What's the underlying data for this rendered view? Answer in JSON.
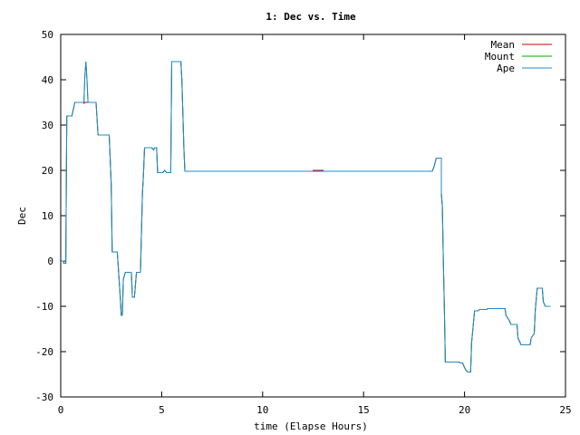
{
  "chart_data": {
    "type": "line",
    "title": "1: Dec vs. Time",
    "xlabel": "time (Elapse Hours)",
    "ylabel": "Dec",
    "xlim": [
      0,
      25
    ],
    "ylim": [
      -30,
      50
    ],
    "x_ticks": [
      0,
      5,
      10,
      15,
      20,
      25
    ],
    "y_ticks": [
      -30,
      -20,
      -10,
      0,
      10,
      20,
      30,
      40,
      50
    ],
    "grid": false,
    "legend_position": "top-right",
    "series": [
      {
        "name": "Mean",
        "color": "#cc0000",
        "points": [
          [
            0,
            0
          ],
          [
            0.15,
            0
          ],
          [
            0.15,
            -0.5
          ],
          [
            0.25,
            -0.5
          ],
          [
            0.3,
            32
          ],
          [
            0.55,
            32
          ],
          [
            0.7,
            35
          ],
          [
            1.15,
            35
          ],
          [
            1.15,
            34.8
          ],
          [
            1.2,
            35
          ],
          [
            1.25,
            35
          ],
          [
            1.35,
            35
          ],
          [
            1.75,
            35
          ],
          [
            1.85,
            27.8
          ],
          [
            2.4,
            27.8
          ],
          [
            2.5,
            17
          ],
          [
            2.55,
            2
          ],
          [
            2.8,
            2
          ],
          [
            2.95,
            -8
          ],
          [
            3,
            -12
          ],
          [
            3.05,
            -12
          ],
          [
            3.1,
            -4
          ],
          [
            3.2,
            -2.5
          ],
          [
            3.5,
            -2.5
          ],
          [
            3.55,
            -8
          ],
          [
            3.65,
            -8
          ],
          [
            3.75,
            -2.5
          ],
          [
            3.95,
            -2.5
          ],
          [
            4.05,
            15
          ],
          [
            4.1,
            19
          ],
          [
            4.15,
            25
          ],
          [
            4.5,
            25
          ],
          [
            4.6,
            24.5
          ],
          [
            4.65,
            25
          ],
          [
            4.75,
            25
          ],
          [
            4.8,
            19.5
          ],
          [
            5.05,
            19.5
          ],
          [
            5.15,
            20
          ],
          [
            5.25,
            19.5
          ],
          [
            5.45,
            19.5
          ],
          [
            5.5,
            44
          ],
          [
            5.95,
            44
          ],
          [
            6,
            40
          ],
          [
            6.1,
            25
          ],
          [
            6.15,
            19.8
          ],
          [
            12.5,
            19.8
          ],
          [
            12.5,
            20
          ],
          [
            13,
            20
          ],
          [
            13,
            19.8
          ],
          [
            18.4,
            19.8
          ],
          [
            18.5,
            21
          ],
          [
            18.6,
            22.7
          ],
          [
            18.85,
            22.7
          ],
          [
            18.85,
            15
          ],
          [
            18.9,
            12
          ],
          [
            18.95,
            0
          ],
          [
            19,
            -10
          ],
          [
            19.05,
            -22.3
          ],
          [
            19.7,
            -22.3
          ],
          [
            19.8,
            -22.5
          ],
          [
            19.9,
            -22.5
          ],
          [
            20.05,
            -24
          ],
          [
            20.15,
            -24.5
          ],
          [
            20.3,
            -24.5
          ],
          [
            20.35,
            -18
          ],
          [
            20.5,
            -11
          ],
          [
            20.65,
            -11
          ],
          [
            20.75,
            -10.7
          ],
          [
            21.1,
            -10.7
          ],
          [
            21.15,
            -10.5
          ],
          [
            22,
            -10.5
          ],
          [
            22.05,
            -12
          ],
          [
            22.2,
            -13
          ],
          [
            22.3,
            -14
          ],
          [
            22.6,
            -14
          ],
          [
            22.65,
            -17
          ],
          [
            22.8,
            -18.5
          ],
          [
            23.25,
            -18.5
          ],
          [
            23.3,
            -17
          ],
          [
            23.45,
            -16
          ],
          [
            23.5,
            -11
          ],
          [
            23.6,
            -6
          ],
          [
            23.85,
            -6
          ],
          [
            23.9,
            -9
          ],
          [
            24,
            -10
          ],
          [
            24.25,
            -10
          ]
        ]
      },
      {
        "name": "Mount",
        "color": "#00aa00",
        "points": [
          [
            0,
            0
          ],
          [
            0.15,
            0
          ],
          [
            0.15,
            -0.5
          ],
          [
            0.25,
            -0.5
          ],
          [
            0.3,
            32
          ],
          [
            0.55,
            32
          ],
          [
            0.7,
            35
          ],
          [
            1.15,
            35
          ],
          [
            1.2,
            41
          ],
          [
            1.25,
            44
          ],
          [
            1.3,
            40
          ],
          [
            1.35,
            35
          ],
          [
            1.75,
            35
          ],
          [
            1.85,
            27.8
          ],
          [
            2.4,
            27.8
          ],
          [
            2.5,
            17
          ],
          [
            2.55,
            2
          ],
          [
            2.8,
            2
          ],
          [
            2.95,
            -8
          ],
          [
            3,
            -12
          ],
          [
            3.05,
            -12
          ],
          [
            3.1,
            -4
          ],
          [
            3.2,
            -2.5
          ],
          [
            3.5,
            -2.5
          ],
          [
            3.55,
            -8
          ],
          [
            3.65,
            -8
          ],
          [
            3.75,
            -2.5
          ],
          [
            3.95,
            -2.5
          ],
          [
            4.05,
            15
          ],
          [
            4.1,
            19
          ],
          [
            4.15,
            25
          ],
          [
            4.5,
            25
          ],
          [
            4.6,
            24.5
          ],
          [
            4.65,
            25
          ],
          [
            4.75,
            25
          ],
          [
            4.8,
            19.5
          ],
          [
            5.05,
            19.5
          ],
          [
            5.15,
            20
          ],
          [
            5.25,
            19.5
          ],
          [
            5.45,
            19.5
          ],
          [
            5.5,
            44
          ],
          [
            5.95,
            44
          ],
          [
            6,
            40
          ],
          [
            6.1,
            25
          ],
          [
            6.15,
            19.8
          ],
          [
            18.4,
            19.8
          ],
          [
            18.5,
            21
          ],
          [
            18.6,
            22.7
          ],
          [
            18.85,
            22.7
          ],
          [
            18.85,
            15
          ],
          [
            18.9,
            12
          ],
          [
            18.95,
            0
          ],
          [
            19,
            -10
          ],
          [
            19.05,
            -22.3
          ],
          [
            19.7,
            -22.3
          ],
          [
            19.8,
            -22.5
          ],
          [
            19.9,
            -22.5
          ],
          [
            20.05,
            -24
          ],
          [
            20.15,
            -24.5
          ],
          [
            20.3,
            -24.5
          ],
          [
            20.35,
            -18
          ],
          [
            20.5,
            -11
          ],
          [
            20.65,
            -11
          ],
          [
            20.75,
            -10.7
          ],
          [
            21.1,
            -10.7
          ],
          [
            21.15,
            -10.5
          ],
          [
            22,
            -10.5
          ],
          [
            22.05,
            -12
          ],
          [
            22.2,
            -13
          ],
          [
            22.3,
            -14
          ],
          [
            22.6,
            -14
          ],
          [
            22.65,
            -17
          ],
          [
            22.8,
            -18.5
          ],
          [
            23.25,
            -18.5
          ],
          [
            23.3,
            -17
          ],
          [
            23.45,
            -16
          ],
          [
            23.5,
            -11
          ],
          [
            23.6,
            -6
          ],
          [
            23.85,
            -6
          ],
          [
            23.9,
            -9
          ],
          [
            24,
            -10
          ],
          [
            24.25,
            -10
          ]
        ]
      },
      {
        "name": "Ape",
        "color": "#2288cc",
        "points": [
          [
            0,
            0
          ],
          [
            0.15,
            0
          ],
          [
            0.15,
            -0.5
          ],
          [
            0.25,
            -0.5
          ],
          [
            0.3,
            32
          ],
          [
            0.55,
            32
          ],
          [
            0.7,
            35
          ],
          [
            1.15,
            35
          ],
          [
            1.2,
            41
          ],
          [
            1.25,
            44
          ],
          [
            1.3,
            40
          ],
          [
            1.35,
            35
          ],
          [
            1.75,
            35
          ],
          [
            1.85,
            27.8
          ],
          [
            2.4,
            27.8
          ],
          [
            2.5,
            17
          ],
          [
            2.55,
            2
          ],
          [
            2.8,
            2
          ],
          [
            2.95,
            -8
          ],
          [
            3,
            -12
          ],
          [
            3.05,
            -12
          ],
          [
            3.1,
            -4
          ],
          [
            3.2,
            -2.5
          ],
          [
            3.5,
            -2.5
          ],
          [
            3.55,
            -8
          ],
          [
            3.65,
            -8
          ],
          [
            3.75,
            -2.5
          ],
          [
            3.95,
            -2.5
          ],
          [
            4.05,
            15
          ],
          [
            4.1,
            19
          ],
          [
            4.15,
            25
          ],
          [
            4.5,
            25
          ],
          [
            4.6,
            24.5
          ],
          [
            4.65,
            25
          ],
          [
            4.75,
            25
          ],
          [
            4.8,
            19.5
          ],
          [
            5.05,
            19.5
          ],
          [
            5.15,
            20
          ],
          [
            5.25,
            19.5
          ],
          [
            5.45,
            19.5
          ],
          [
            5.5,
            44
          ],
          [
            5.95,
            44
          ],
          [
            6,
            40
          ],
          [
            6.1,
            25
          ],
          [
            6.15,
            19.8
          ],
          [
            18.4,
            19.8
          ],
          [
            18.5,
            21
          ],
          [
            18.6,
            22.7
          ],
          [
            18.85,
            22.7
          ],
          [
            18.85,
            15
          ],
          [
            18.9,
            12
          ],
          [
            18.95,
            0
          ],
          [
            19,
            -10
          ],
          [
            19.05,
            -22.3
          ],
          [
            19.7,
            -22.3
          ],
          [
            19.8,
            -22.5
          ],
          [
            19.9,
            -22.5
          ],
          [
            20.05,
            -24
          ],
          [
            20.15,
            -24.5
          ],
          [
            20.3,
            -24.5
          ],
          [
            20.35,
            -18
          ],
          [
            20.5,
            -11
          ],
          [
            20.65,
            -11
          ],
          [
            20.75,
            -10.7
          ],
          [
            21.1,
            -10.7
          ],
          [
            21.15,
            -10.5
          ],
          [
            22,
            -10.5
          ],
          [
            22.05,
            -12
          ],
          [
            22.2,
            -13
          ],
          [
            22.3,
            -14
          ],
          [
            22.6,
            -14
          ],
          [
            22.65,
            -17
          ],
          [
            22.8,
            -18.5
          ],
          [
            23.25,
            -18.5
          ],
          [
            23.3,
            -17
          ],
          [
            23.45,
            -16
          ],
          [
            23.5,
            -11
          ],
          [
            23.6,
            -6
          ],
          [
            23.85,
            -6
          ],
          [
            23.9,
            -9
          ],
          [
            24,
            -10
          ],
          [
            24.25,
            -10
          ]
        ]
      }
    ]
  }
}
